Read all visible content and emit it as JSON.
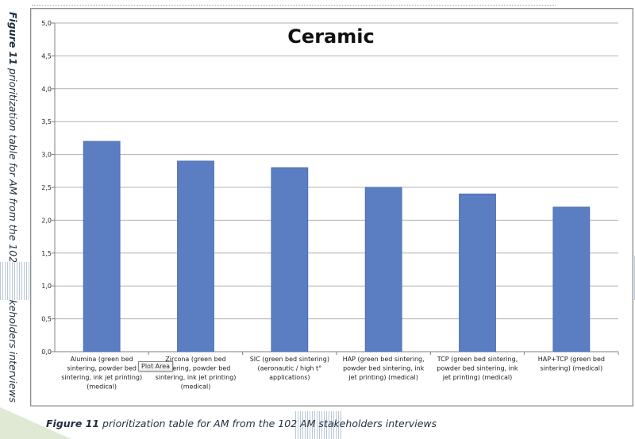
{
  "caption": {
    "figure_label": "Figure 11",
    "text": "prioritization table for AM from the 102 AM stakeholders interviews"
  },
  "tooltip": "Plot Area",
  "colors": {
    "bar": "#5b7ec2",
    "bar_edge": "#4a6aa8",
    "grid": "#b0b0b0"
  },
  "chart_data": {
    "type": "bar",
    "title": "Ceramic",
    "xlabel": "",
    "ylabel": "",
    "ylim": [
      0,
      5
    ],
    "yticks": [
      "0,0",
      "0,5",
      "1,0",
      "1,5",
      "2,0",
      "2,5",
      "3,0",
      "3,5",
      "4,0",
      "4,5",
      "5,0"
    ],
    "grid": true,
    "categories": [
      [
        "Alumina (green bed",
        "sintering, powder bed",
        "sintering, ink jet printing)",
        "(medical)"
      ],
      [
        "Zircona (green bed",
        "sintering, powder bed",
        "sintering, ink jet printing)",
        "(medical)"
      ],
      [
        "SIC (green bed sintering)",
        "(aeronautic / high t°",
        "applications)"
      ],
      [
        "HAP (green bed sintering,",
        "powder bed sintering, ink",
        "jet printing) (medical)"
      ],
      [
        "TCP (green bed sintering,",
        "powder bed sintering, ink",
        "jet printing) (medical)"
      ],
      [
        "HAP+TCP (green bed",
        "sintering) (medical)"
      ]
    ],
    "values": [
      3.2,
      2.9,
      2.8,
      2.5,
      2.4,
      2.2
    ]
  }
}
